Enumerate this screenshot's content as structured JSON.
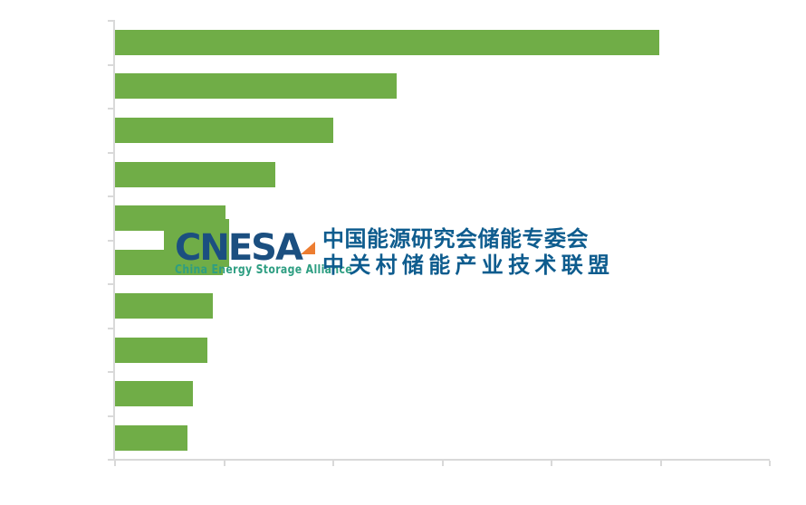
{
  "page": {
    "background": "#ffffff"
  },
  "chart_data": {
    "type": "bar",
    "orientation": "horizontal",
    "title": "",
    "xlabel": "",
    "ylabel": "",
    "categories": [
      "",
      "",
      "",
      "",
      "",
      "",
      "",
      "",
      "",
      ""
    ],
    "values": [
      4.99,
      2.58,
      2.0,
      1.47,
      1.01,
      0.99,
      0.9,
      0.85,
      0.71,
      0.66
    ],
    "xlim": [
      0,
      6
    ],
    "x_tick_count": 7,
    "y_tick_count": 11,
    "grid": false,
    "axis_tick_labels_visible": false,
    "legend": null,
    "bar_color": "#70AD47",
    "axis_color": "#D9D9D9"
  },
  "watermark": {
    "wordmark": "CNESA",
    "subtitle": "China Energy Storage Alliance",
    "cn_line1": "中国能源研究会储能专委会",
    "cn_line2": "中关村储能产业技术联盟",
    "colors": {
      "wordmark_blue": "#1B4F80",
      "chinese_blue": "#0E5C8E",
      "subtitle_teal": "#2E9E82",
      "accent_orange": "#ED7D31",
      "square_green": "#70AD47"
    }
  }
}
